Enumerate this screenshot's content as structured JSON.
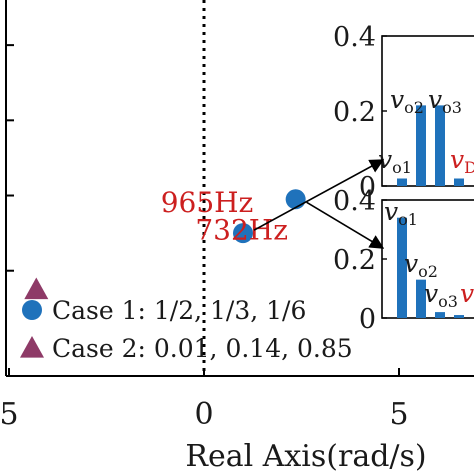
{
  "chart_data": {
    "type": "scatter",
    "main": {
      "xlabel": "Real Axis(rad/s)",
      "x_ticks": [
        "5",
        "0",
        "5"
      ],
      "xlim": [
        -5.6,
        10
      ],
      "ylim": [
        -0.38,
        0.62
      ],
      "points": [
        {
          "x": 1.0,
          "y": 0.0,
          "series": 0,
          "label": "965Hz",
          "label_color": "#cc1f1f"
        },
        {
          "x": 2.35,
          "y": 0.09,
          "series": 0,
          "label": "732Hz",
          "label_color": "#cc1f1f"
        },
        {
          "x": -4.3,
          "y": -0.15,
          "series": 1
        }
      ],
      "series": [
        {
          "name": "Case 1: 1/2, 1/3, 1/6",
          "marker": "circle",
          "color": "#1f72bb"
        },
        {
          "name": "Case 2: 0.01, 0.14, 0.85",
          "marker": "triangle",
          "color": "#8e3a67"
        }
      ],
      "zero_line": {
        "x": 0,
        "style": "dotted"
      }
    },
    "insets": [
      {
        "type": "bar",
        "ylim": [
          0,
          0.4
        ],
        "y_ticks": [
          "0",
          "0.2",
          "0.4"
        ],
        "bars": [
          0.02,
          0.215,
          0.215,
          0.02
        ],
        "bar_color": "#1f72bb",
        "annotations": [
          {
            "text": "v",
            "sub": "o1",
            "color": "#1a1a1a"
          },
          {
            "text": "v",
            "sub": "o2",
            "color": "#1a1a1a"
          },
          {
            "text": "v",
            "sub": "o3",
            "color": "#1a1a1a"
          },
          {
            "text": "v",
            "sub": "D",
            "color": "#cc1f1f"
          }
        ]
      },
      {
        "type": "bar",
        "ylim": [
          0,
          0.4
        ],
        "y_ticks": [
          "0",
          "0.2",
          "0.4"
        ],
        "bars": [
          0.34,
          0.13,
          0.02,
          0.01
        ],
        "bar_color": "#1f72bb",
        "annotations": [
          {
            "text": "v",
            "sub": "o1",
            "color": "#1a1a1a"
          },
          {
            "text": "v",
            "sub": "o2",
            "color": "#1a1a1a"
          },
          {
            "text": "v",
            "sub": "o3",
            "color": "#1a1a1a"
          },
          {
            "text": "v",
            "sub": "",
            "color": "#cc1f1f"
          }
        ]
      }
    ]
  }
}
